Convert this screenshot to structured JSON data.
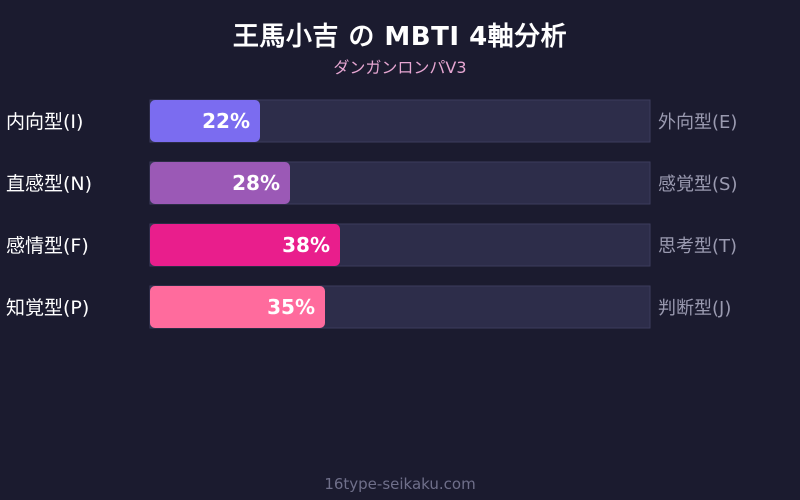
{
  "header": {
    "title": "王馬小吉 の MBTI 4軸分析",
    "subtitle": "ダンガンロンパV3"
  },
  "footer": {
    "site": "16type-seikaku.com"
  },
  "chart_data": {
    "type": "bar",
    "orientation": "horizontal",
    "xlim": [
      0,
      100
    ],
    "categories": [
      "内向型(I)",
      "直感型(N)",
      "感情型(F)",
      "知覚型(P)"
    ],
    "right_labels": [
      "外向型(E)",
      "感覚型(S)",
      "思考型(T)",
      "判断型(J)"
    ],
    "values": [
      22,
      28,
      38,
      35
    ],
    "value_labels": [
      "22%",
      "28%",
      "38%",
      "35%"
    ],
    "colors": [
      "#7b6cf0",
      "#9b59b6",
      "#e91e8c",
      "#ff6b9d"
    ],
    "track_color": "#2d2d4a"
  }
}
